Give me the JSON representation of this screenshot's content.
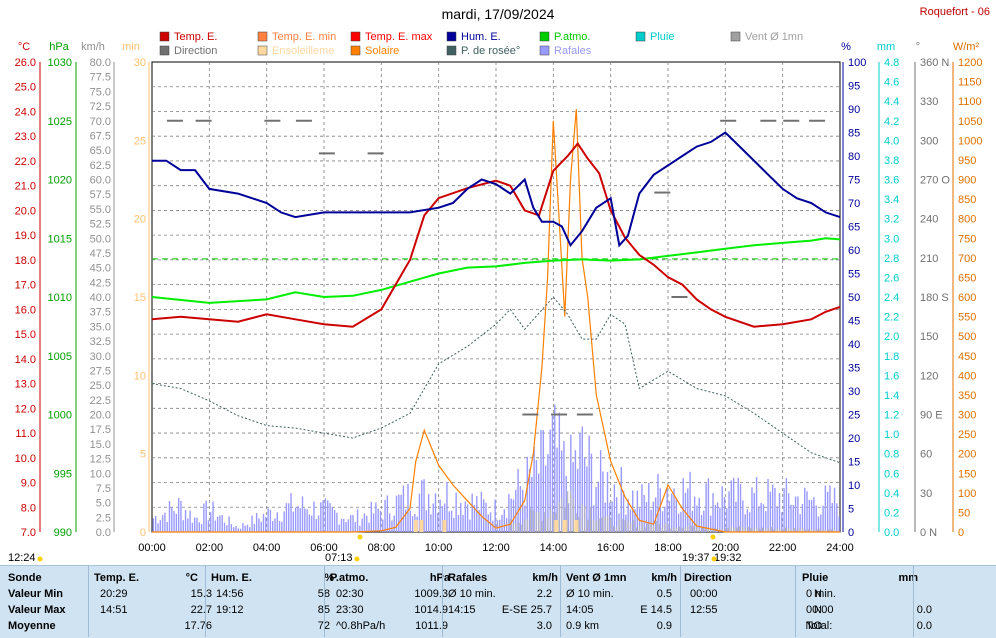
{
  "title": "mardi, 17/09/2024",
  "station": "Roquefort - 06",
  "axis_units": {
    "temp": "°C",
    "press": "hPa",
    "wind": "km/h",
    "sun_min": "min",
    "hum": "%",
    "rain": "mm",
    "dir": "°",
    "solar": "W/m²"
  },
  "legend": [
    {
      "label": "Temp. E.",
      "color": "#cc0000"
    },
    {
      "label": "Temp. E. min",
      "color": "#ff8040"
    },
    {
      "label": "Temp. E. max",
      "color": "#ff0000"
    },
    {
      "label": "Hum. E.",
      "color": "#000099"
    },
    {
      "label": "P.atmo.",
      "color": "#00cc00"
    },
    {
      "label": "Pluie",
      "color": "#00cccc"
    },
    {
      "label": "Vent Ø 1mn",
      "color": "#a0a0a0"
    },
    {
      "label": "Direction",
      "color": "#707070"
    },
    {
      "label": "Ensoleilleme",
      "color": "#ffd8a0"
    },
    {
      "label": "Solaire",
      "color": "#ff8000"
    },
    {
      "label": "P. de rosée°",
      "color": "#406060"
    },
    {
      "label": "Rafales",
      "color": "#9999ff"
    }
  ],
  "sun_markers": {
    "sunrise": "07:13",
    "sunset": "19:32",
    "moon": "12:24",
    "moonset": "19:37"
  },
  "chart_data": {
    "type": "line",
    "title": "mardi, 17/09/2024",
    "x_ticks": [
      "00:00",
      "02:00",
      "04:00",
      "06:00",
      "08:00",
      "10:00",
      "12:00",
      "14:00",
      "16:00",
      "18:00",
      "20:00",
      "22:00",
      "24:00"
    ],
    "x_range_hours": [
      0,
      24
    ],
    "axes": {
      "temp_c": {
        "range": [
          7,
          26
        ],
        "ticks": [
          "26.0",
          "25.0",
          "24.0",
          "23.0",
          "22.0",
          "21.0",
          "20.0",
          "19.0",
          "18.0",
          "17.0",
          "16.0",
          "15.0",
          "14.0",
          "13.0",
          "12.0",
          "11.0",
          "10.0",
          "9.0",
          "8.0",
          "7.0"
        ]
      },
      "pressure_hpa": {
        "range": [
          990,
          1030
        ],
        "ticks": [
          "1030",
          "1025",
          "1020",
          "1015",
          "1010",
          "1005",
          "1000",
          "995",
          "990"
        ]
      },
      "wind_kmh": {
        "range": [
          0,
          80
        ],
        "ticks": [
          "80.0",
          "77.5",
          "75.0",
          "72.5",
          "70.0",
          "67.5",
          "65.0",
          "62.5",
          "60.0",
          "57.5",
          "55.0",
          "52.5",
          "50.0",
          "47.5",
          "45.0",
          "42.5",
          "40.0",
          "37.5",
          "35.0",
          "32.5",
          "30.0",
          "27.5",
          "25.0",
          "22.5",
          "20.0",
          "17.5",
          "15.0",
          "12.5",
          "10.0",
          "7.5",
          "5.0",
          "2.5",
          "0.0"
        ]
      },
      "sun_min": {
        "range": [
          0,
          30
        ],
        "ticks": [
          "30",
          "25",
          "20",
          "15",
          "10",
          "5",
          "0"
        ]
      },
      "humidity_pct": {
        "range": [
          0,
          100
        ],
        "ticks": [
          "100",
          "95",
          "90",
          "85",
          "80",
          "75",
          "70",
          "65",
          "60",
          "55",
          "50",
          "45",
          "40",
          "35",
          "30",
          "25",
          "20",
          "15",
          "10",
          "5",
          "0"
        ]
      },
      "rain_mm": {
        "range": [
          0,
          5
        ],
        "ticks": [
          "4.8",
          "4.6",
          "4.4",
          "4.2",
          "4.0",
          "3.8",
          "3.6",
          "3.4",
          "3.2",
          "3.0",
          "2.8",
          "2.6",
          "2.4",
          "2.2",
          "2.0",
          "1.8",
          "1.6",
          "1.4",
          "1.2",
          "1.0",
          "0.8",
          "0.6",
          "0.4",
          "0.2",
          "0.0"
        ]
      },
      "direction_deg": {
        "range": [
          0,
          360
        ],
        "ticks": [
          "360 N",
          "330",
          "300",
          "270 O",
          "240",
          "210",
          "180 S",
          "150",
          "120",
          "90 E",
          "60",
          "30",
          "0 N"
        ]
      },
      "solar_wm2": {
        "range": [
          0,
          1200
        ],
        "ticks": [
          "1200",
          "1150",
          "1100",
          "1050",
          "1000",
          "950",
          "900",
          "850",
          "800",
          "750",
          "700",
          "650",
          "600",
          "550",
          "500",
          "450",
          "400",
          "350",
          "300",
          "250",
          "200",
          "150",
          "100",
          "50",
          "0"
        ]
      }
    },
    "series": [
      {
        "name": "Temp. E.",
        "axis": "temp_c",
        "x": [
          0,
          1,
          2,
          3,
          4,
          5,
          6,
          7,
          8,
          9,
          9.5,
          10,
          11,
          12,
          12.5,
          13,
          13.5,
          14,
          14.5,
          14.85,
          15.2,
          15.6,
          16,
          16.5,
          17,
          17.5,
          18,
          18.5,
          19,
          19.5,
          20,
          21,
          22,
          23,
          23.5,
          24
        ],
        "y": [
          15.6,
          15.7,
          15.6,
          15.5,
          15.8,
          15.6,
          15.4,
          15.3,
          16,
          18,
          19.8,
          20.5,
          20.9,
          21.2,
          21.0,
          20,
          19.8,
          21.6,
          22.2,
          22.7,
          22.1,
          21.5,
          20,
          18.9,
          18.2,
          17.8,
          17.3,
          17,
          16.4,
          16,
          15.7,
          15.3,
          15.4,
          15.6,
          15.9,
          16.1
        ]
      },
      {
        "name": "Hum. E.",
        "axis": "humidity_pct",
        "x": [
          0,
          0.5,
          1,
          1.5,
          2,
          3,
          4,
          4.5,
          5,
          6,
          7,
          8,
          9,
          10,
          10.5,
          11,
          11.5,
          12,
          12.5,
          13,
          13.3,
          13.6,
          14,
          14.3,
          14.6,
          15,
          15.5,
          16,
          16.3,
          16.6,
          17,
          17.5,
          18,
          18.5,
          19,
          19.5,
          20,
          20.5,
          21,
          21.5,
          22,
          22.5,
          23,
          23.5,
          24
        ],
        "y": [
          79,
          79,
          77,
          77,
          73,
          72,
          70,
          68,
          67,
          68,
          68,
          68,
          68,
          69,
          70,
          73,
          75,
          74,
          72,
          75,
          69,
          66,
          66,
          65,
          61,
          64,
          69,
          71,
          61,
          63,
          72,
          76,
          78,
          80,
          82,
          83,
          85,
          82,
          79,
          76,
          73,
          71,
          70,
          68,
          67
        ]
      },
      {
        "name": "P.atmo.",
        "axis": "pressure_hpa",
        "x": [
          0,
          2,
          4,
          5,
          6,
          7,
          8,
          9,
          10,
          11,
          12,
          13,
          14,
          15,
          16,
          17,
          18,
          19,
          20,
          21,
          22,
          23,
          23.5,
          24
        ],
        "y": [
          1010,
          1009.5,
          1009.8,
          1010.4,
          1010,
          1010.1,
          1010.6,
          1011.3,
          1012,
          1012.5,
          1012.6,
          1012.9,
          1013.1,
          1013.2,
          1013.1,
          1013.2,
          1013.5,
          1013.8,
          1014.1,
          1014.4,
          1014.6,
          1014.8,
          1015,
          1014.9
        ]
      },
      {
        "name": "P. de rosée°",
        "axis": "temp_c",
        "x": [
          0,
          1,
          2,
          3,
          4,
          5,
          6,
          7,
          8,
          9,
          10,
          11,
          12,
          12.5,
          13,
          14,
          14.5,
          15,
          15.5,
          16,
          16.5,
          17,
          18,
          19,
          20,
          21,
          22,
          23,
          24
        ],
        "y": [
          13,
          12.8,
          12.3,
          11.7,
          11.3,
          11.2,
          11,
          10.8,
          11.2,
          11.8,
          13.8,
          14.5,
          15.4,
          16,
          15.2,
          16.5,
          15.8,
          14.8,
          14.8,
          15.8,
          15.4,
          12.8,
          13.5,
          12.8,
          12.5,
          11.8,
          11,
          10.2,
          9.8
        ]
      },
      {
        "name": "Solaire",
        "axis": "solar_wm2",
        "x": [
          0,
          7,
          8,
          8.5,
          9,
          9.2,
          9.5,
          10,
          10.5,
          11,
          11.5,
          12,
          12.5,
          13,
          13.3,
          13.6,
          13.8,
          14,
          14.2,
          14.4,
          14.6,
          14.8,
          15,
          15.2,
          15.5,
          16,
          16.5,
          17,
          17.5,
          18,
          18.5,
          19,
          20,
          24
        ],
        "y": [
          0,
          0,
          3,
          12,
          60,
          180,
          260,
          170,
          120,
          80,
          40,
          10,
          20,
          80,
          200,
          420,
          650,
          1050,
          800,
          550,
          900,
          1080,
          700,
          600,
          350,
          180,
          90,
          30,
          20,
          120,
          60,
          15,
          0,
          0
        ]
      },
      {
        "name": "Rafales",
        "axis": "wind_kmh",
        "x": [
          0,
          1,
          1.5,
          2,
          3,
          4,
          5,
          6,
          7,
          8,
          9,
          10,
          11,
          12,
          12.5,
          13,
          13.5,
          14,
          14.5,
          15,
          15.5,
          16,
          17,
          18,
          19,
          20,
          21,
          22,
          23,
          24
        ],
        "y": [
          3,
          6,
          3,
          5,
          1,
          4,
          6,
          5,
          3,
          5,
          8,
          9,
          7,
          5,
          8,
          11,
          14,
          20,
          13,
          18,
          12,
          11,
          7,
          10,
          9,
          8,
          8,
          8,
          7,
          7
        ]
      },
      {
        "name": "Vent Ø 1mn",
        "axis": "wind_kmh",
        "x": [
          0,
          6,
          9,
          12,
          13,
          14,
          14.5,
          15,
          15.5,
          16,
          18,
          20,
          24
        ],
        "y": [
          0,
          0,
          0.5,
          1,
          3,
          5,
          8,
          6,
          4,
          2,
          1.5,
          1,
          0.5
        ]
      },
      {
        "name": "Direction",
        "axis": "direction_deg",
        "x": [
          0.8,
          1.8,
          4.2,
          5.3,
          6.1,
          7.8,
          13.2,
          14.2,
          15.1,
          17.8,
          18.4,
          20.1,
          21.5,
          22.3,
          23.2
        ],
        "y": [
          315,
          315,
          315,
          315,
          290,
          290,
          90,
          90,
          90,
          260,
          180,
          315,
          315,
          315,
          315
        ]
      }
    ]
  },
  "stats": {
    "headers": [
      "Sonde",
      "Temp. E.",
      "°C",
      "Hum. E.",
      "%",
      "P.atmo.",
      "hPa",
      "Rafales",
      "km/h",
      "Vent Ø 1mn",
      "km/h",
      "Direction",
      "Pluie",
      "mm"
    ],
    "rows": [
      {
        "label": "Valeur Min",
        "cells": [
          "20:29",
          "15.3",
          "14:56",
          "58",
          "02:30",
          "1009.3",
          "Ø 10 min.",
          "2.2",
          "Ø 10 min.",
          "0.5",
          "00:00",
          "N",
          "0 min."
        ]
      },
      {
        "label": "Valeur Max",
        "cells": [
          "14:51",
          "22.7",
          "19:12",
          "85",
          "23:30",
          "1014.9",
          "14:15",
          "E-SE 25.7",
          "14:05",
          "E 14.5",
          "12:55",
          "N",
          "00:00",
          "0.0"
        ]
      },
      {
        "label": "Moyenne",
        "cells": [
          "",
          "17.76",
          "",
          "72",
          "^0.8hPa/h",
          "1011.9",
          "",
          "3.0",
          "0.9 km",
          "0.9",
          "",
          "NO",
          "Total:",
          "0.0"
        ]
      }
    ]
  }
}
